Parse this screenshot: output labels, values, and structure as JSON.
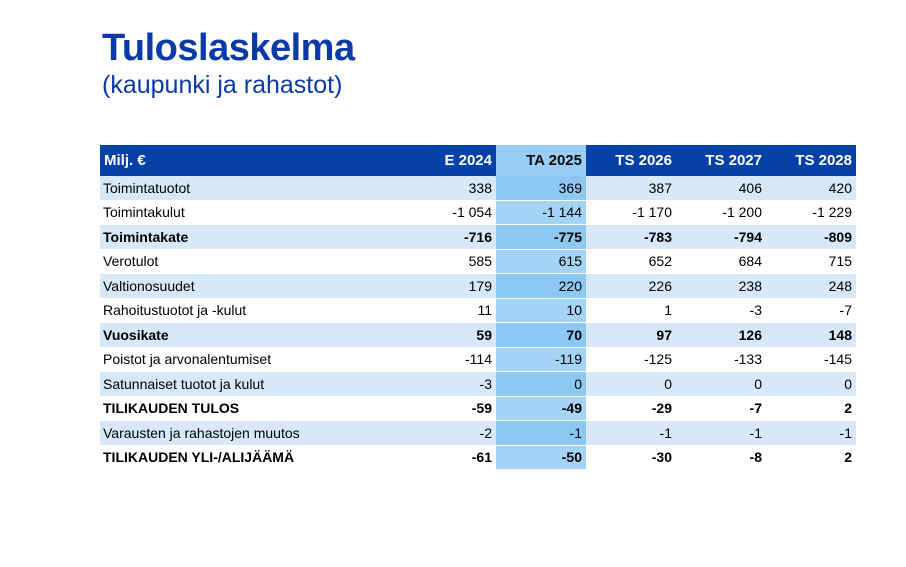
{
  "title": "Tuloslaskelma",
  "subtitle": "(kaupunki ja rahastot)",
  "table": {
    "header_label": "Milj. €",
    "columns": [
      "E 2024",
      "TA 2025",
      "TS 2026",
      "TS 2027",
      "TS 2028"
    ],
    "highlight_column": 1,
    "rows": [
      {
        "label": "Toimintatuotot",
        "values": [
          "338",
          "369",
          "387",
          "406",
          "420"
        ],
        "bold": false
      },
      {
        "label": "Toimintakulut",
        "values": [
          "-1 054",
          "-1 144",
          "-1 170",
          "-1 200",
          "-1 229"
        ],
        "bold": false
      },
      {
        "label": "Toimintakate",
        "values": [
          "-716",
          "-775",
          "-783",
          "-794",
          "-809"
        ],
        "bold": true
      },
      {
        "label": "Verotulot",
        "values": [
          "585",
          "615",
          "652",
          "684",
          "715"
        ],
        "bold": false
      },
      {
        "label": "Valtionosuudet",
        "values": [
          "179",
          "220",
          "226",
          "238",
          "248"
        ],
        "bold": false
      },
      {
        "label": "Rahoitustuotot ja -kulut",
        "values": [
          "11",
          "10",
          "1",
          "-3",
          "-7"
        ],
        "bold": false
      },
      {
        "label": "Vuosikate",
        "values": [
          "59",
          "70",
          "97",
          "126",
          "148"
        ],
        "bold": true
      },
      {
        "label": "Poistot ja arvonalentumiset",
        "values": [
          "-114",
          "-119",
          "-125",
          "-133",
          "-145"
        ],
        "bold": false
      },
      {
        "label": "Satunnaiset tuotot ja kulut",
        "values": [
          "-3",
          "0",
          "0",
          "0",
          "0"
        ],
        "bold": false
      },
      {
        "label": "TILIKAUDEN TULOS",
        "values": [
          "-59",
          "-49",
          "-29",
          "-7",
          "2"
        ],
        "bold": true
      },
      {
        "label": "Varausten ja rahastojen muutos",
        "values": [
          "-2",
          "-1",
          "-1",
          "-1",
          "-1"
        ],
        "bold": false
      },
      {
        "label": "TILIKAUDEN YLI-/ALIJÄÄMÄ",
        "values": [
          "-61",
          "-50",
          "-30",
          "-8",
          "2"
        ],
        "bold": true
      }
    ]
  },
  "colors": {
    "title": "#0a3aa8",
    "header_bg": "#0641a7",
    "header_highlight_bg": "#99cdf5",
    "row_stripe": "#d7e9f8",
    "column_highlight": "#8cc8f2"
  }
}
